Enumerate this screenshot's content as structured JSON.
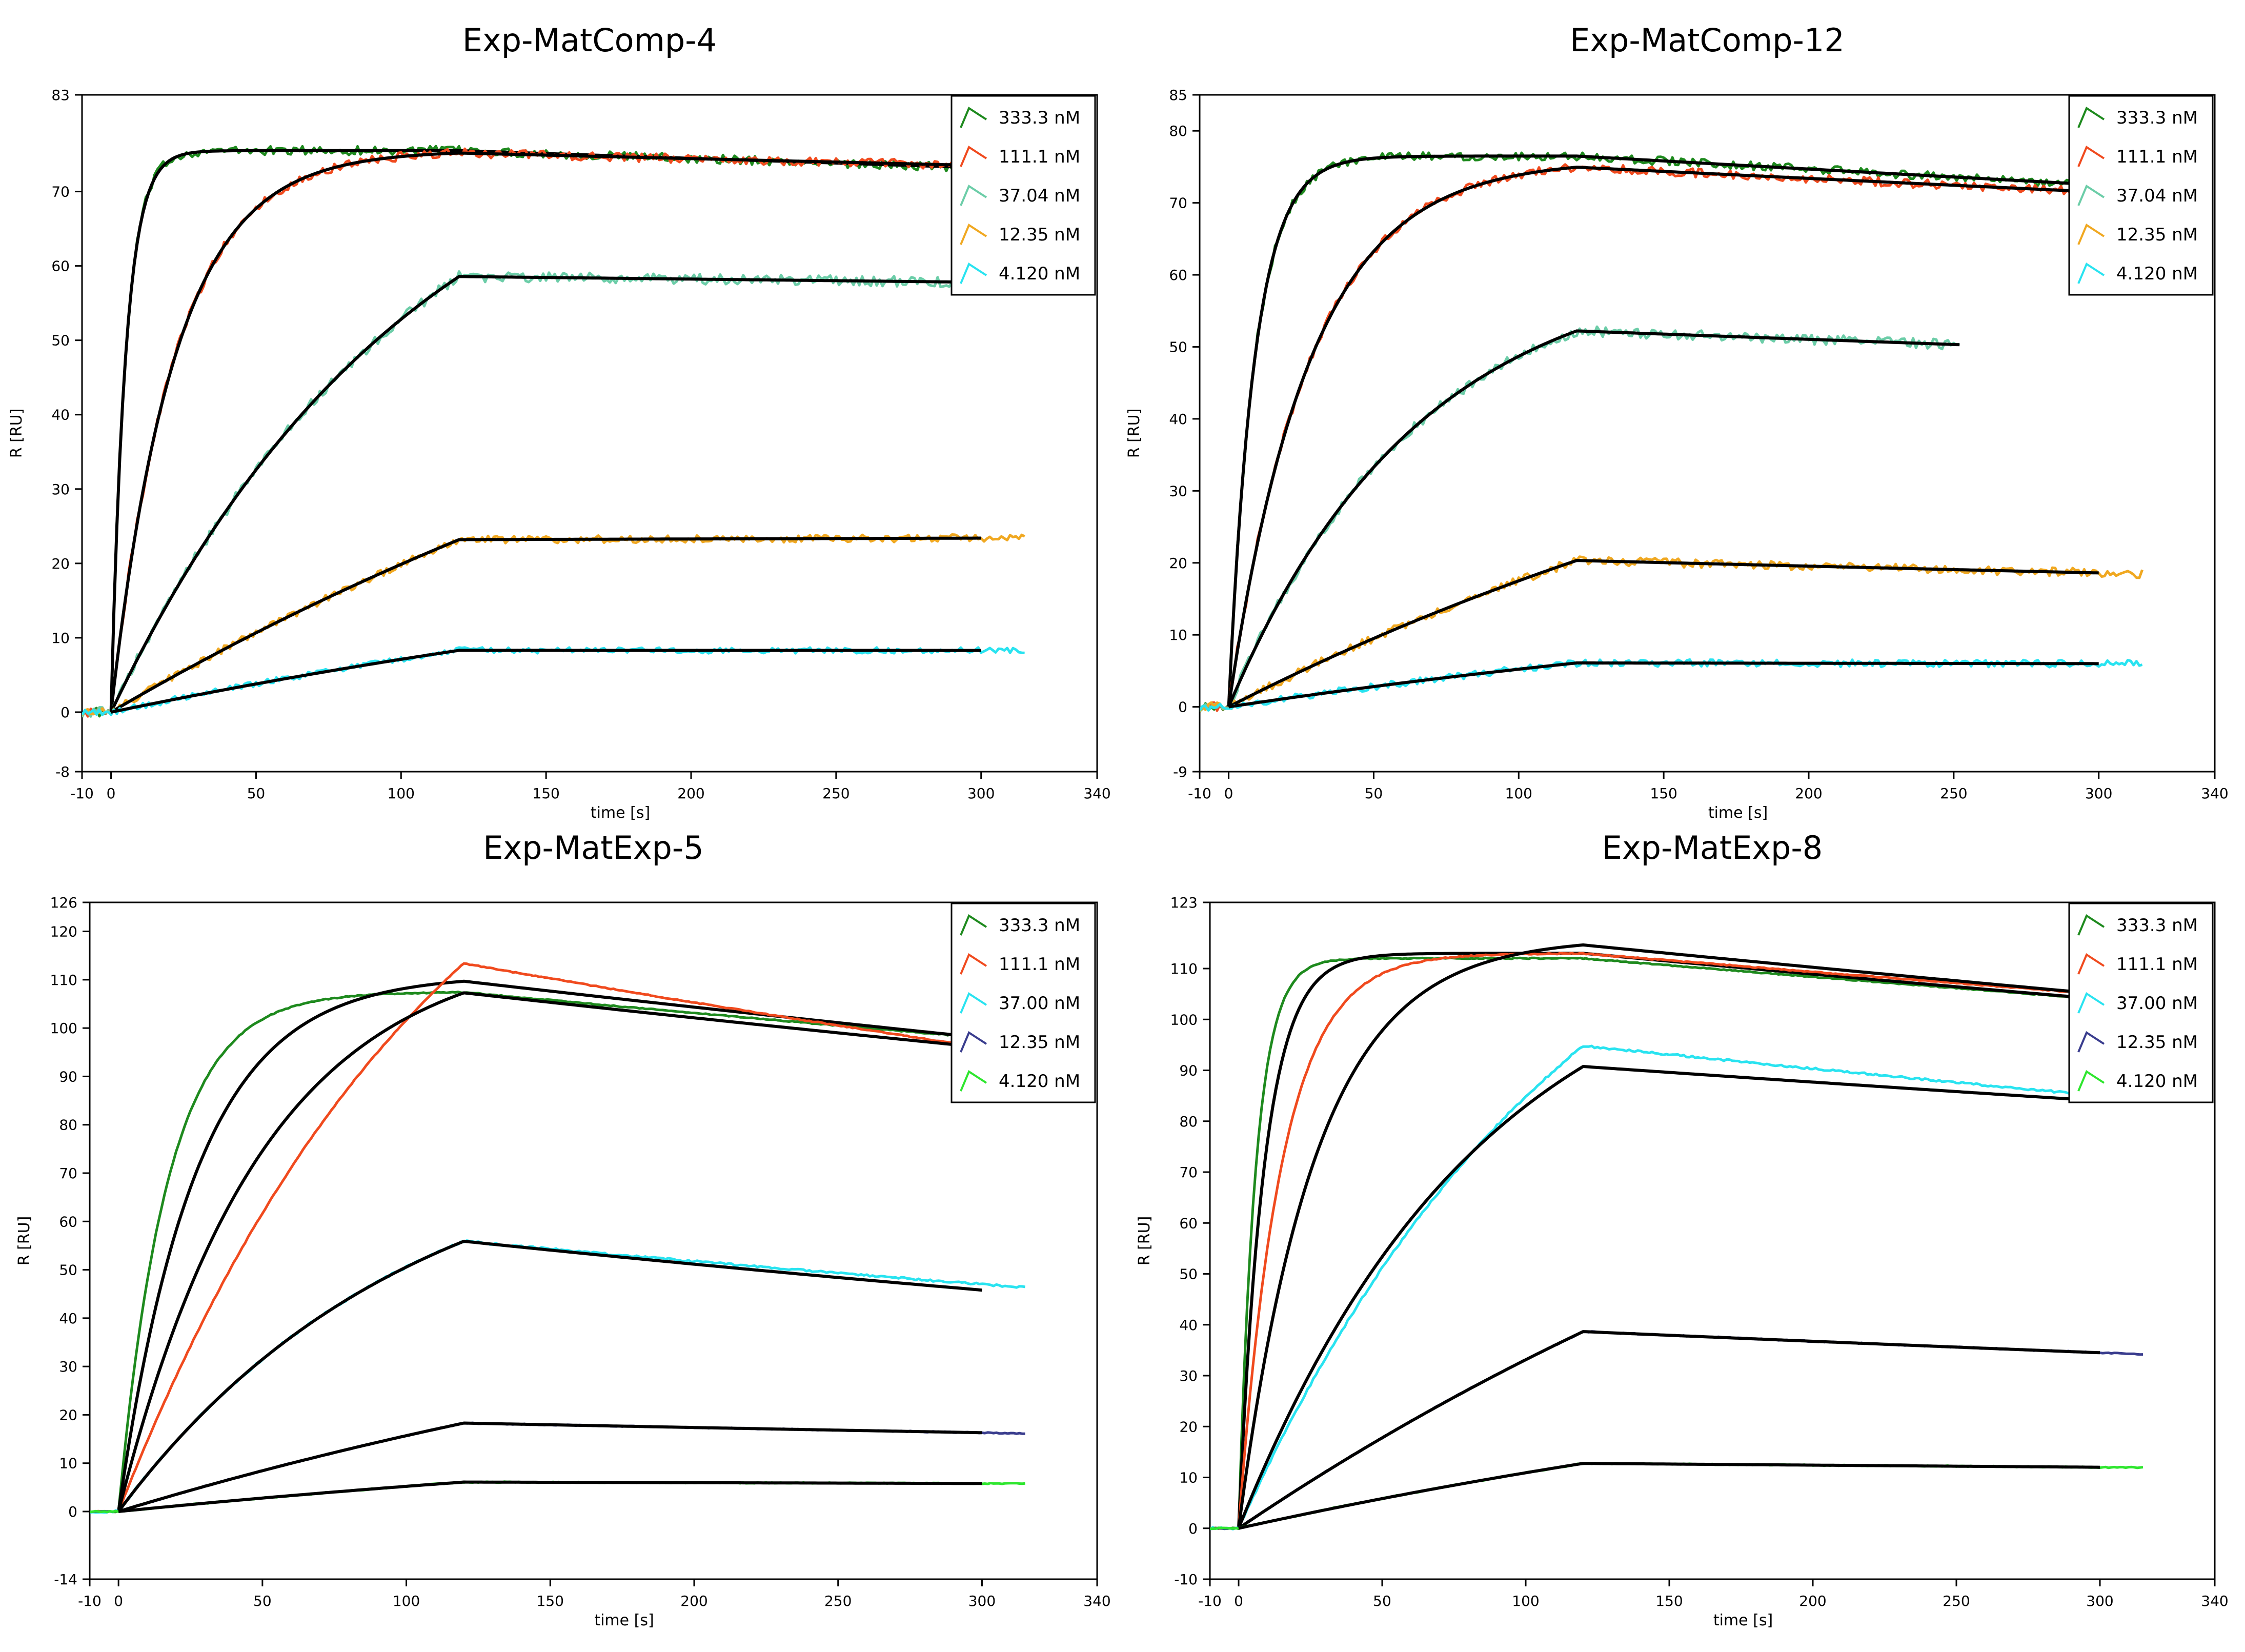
{
  "chart_data": [
    {
      "type": "line",
      "title": "Exp-MatComp-4",
      "xlabel": "time [s]",
      "ylabel": "R [RU]",
      "xlim": [
        -10,
        340
      ],
      "ylim": [
        -8,
        83
      ],
      "xticks": [
        -10,
        0,
        50,
        100,
        150,
        200,
        250,
        300,
        340
      ],
      "yticks": [
        -8,
        0,
        10,
        20,
        30,
        40,
        50,
        60,
        70,
        83
      ],
      "legend_position": "top-right",
      "series": [
        {
          "name": "333.3 nM",
          "color": "#1e8a1e",
          "fit_color": "#000000",
          "rmax": 75.5,
          "tau": 5.0,
          "t_end": 300,
          "fit_end": 300,
          "y_end": 73.2,
          "noise": 0.6
        },
        {
          "name": "111.1 nM",
          "color": "#f04a1e",
          "fit_color": "#000000",
          "rmax": 75.5,
          "tau": 22.0,
          "t_end": 300,
          "fit_end": 300,
          "y_end": 73.5,
          "noise": 0.6
        },
        {
          "name": "37.04 nM",
          "color": "#6ccda8",
          "fit_color": "#000000",
          "rmax": 86.0,
          "tau": 105.0,
          "t_end": 300,
          "fit_end": 300,
          "y_end": 57.8,
          "noise": 0.7
        },
        {
          "name": "12.35 nM",
          "color": "#f0a821",
          "fit_color": "#000000",
          "rmax": 78.0,
          "tau": 340.0,
          "t_end": 315,
          "fit_end": 300,
          "y_end": 23.4,
          "noise": 0.5
        },
        {
          "name": "4.120 nM",
          "color": "#29e3f0",
          "fit_color": "#000000",
          "rmax": 30.0,
          "tau": 370.0,
          "t_end": 315,
          "fit_end": 300,
          "y_end": 8.3,
          "noise": 0.4
        }
      ]
    },
    {
      "type": "line",
      "title": "Exp-MatComp-12",
      "xlabel": "time [s]",
      "ylabel": "R [RU]",
      "xlim": [
        -10,
        340
      ],
      "ylim": [
        -9,
        85
      ],
      "xticks": [
        -10,
        0,
        50,
        100,
        150,
        200,
        250,
        300,
        340
      ],
      "yticks": [
        -9,
        0,
        10,
        20,
        30,
        40,
        50,
        60,
        70,
        80,
        85
      ],
      "legend_position": "top-right",
      "series": [
        {
          "name": "333.3 nM",
          "color": "#1e8a1e",
          "fit_color": "#000000",
          "rmax": 76.5,
          "tau": 9.0,
          "t_end": 300,
          "fit_end": 300,
          "y_end": 72.5,
          "noise": 0.6
        },
        {
          "name": "111.1 nM",
          "color": "#f04a1e",
          "fit_color": "#000000",
          "rmax": 76.0,
          "tau": 28.0,
          "t_end": 300,
          "fit_end": 300,
          "y_end": 71.5,
          "noise": 0.6
        },
        {
          "name": "37.04 nM",
          "color": "#6ccda8",
          "fit_color": "#000000",
          "rmax": 62.0,
          "tau": 65.0,
          "t_end": 252,
          "fit_end": 252,
          "y_end": 50.3,
          "noise": 0.7
        },
        {
          "name": "12.35 nM",
          "color": "#f0a821",
          "fit_color": "#000000",
          "rmax": 60.0,
          "tau": 290.0,
          "t_end": 315,
          "fit_end": 300,
          "y_end": 18.6,
          "noise": 0.6
        },
        {
          "name": "4.120 nM",
          "color": "#29e3f0",
          "fit_color": "#000000",
          "rmax": 20.0,
          "tau": 330.0,
          "t_end": 315,
          "fit_end": 300,
          "y_end": 6.0,
          "noise": 0.5
        }
      ]
    },
    {
      "type": "line",
      "title": "Exp-MatExp-5",
      "xlabel": "time [s]",
      "ylabel": "R [RU]",
      "xlim": [
        -10,
        340
      ],
      "ylim": [
        -14,
        126
      ],
      "xticks": [
        -10,
        0,
        50,
        100,
        150,
        200,
        250,
        300,
        340
      ],
      "yticks": [
        -14,
        0,
        10,
        20,
        30,
        40,
        50,
        60,
        70,
        80,
        90,
        100,
        110,
        120,
        126
      ],
      "legend_position": "top-right",
      "series": [
        {
          "name": "333.3 nM",
          "color": "#1e8a1e",
          "fit_color": "#000000",
          "rmax": 107.5,
          "tau": 17.0,
          "fit_rmax": 111.0,
          "fit_tau": 27.0,
          "t_end": 300,
          "fit_end": 300,
          "y_end": 98.0,
          "noise": 0.1
        },
        {
          "name": "111.1 nM",
          "color": "#f04a1e",
          "fit_color": "#000000",
          "rmax": 175.0,
          "tau": 115.0,
          "fit_rmax": 118.0,
          "fit_tau": 50.0,
          "t_end": 300,
          "fit_end": 300,
          "y_end": 96.0,
          "noise": 0.1
        },
        {
          "name": "37.00 nM",
          "color": "#29e3f0",
          "fit_color": "#000000",
          "rmax": 80.0,
          "tau": 100.0,
          "t_end": 315,
          "fit_end": 300,
          "y_end": 47.0,
          "fit_y_end": 45.8,
          "noise": 0.2
        },
        {
          "name": "12.35 nM",
          "color": "#3a3d8e",
          "fit_color": "#000000",
          "rmax": 60.0,
          "tau": 330.0,
          "t_end": 315,
          "fit_end": 300,
          "y_end": 16.3,
          "noise": 0.1
        },
        {
          "name": "4.120 nM",
          "color": "#2ee62e",
          "fit_color": "#000000",
          "rmax": 22.0,
          "tau": 370.0,
          "t_end": 315,
          "fit_end": 300,
          "y_end": 5.8,
          "noise": 0.1
        }
      ]
    },
    {
      "type": "line",
      "title": "Exp-MatExp-8",
      "xlabel": "time [s]",
      "ylabel": "R [RU]",
      "xlim": [
        -10,
        340
      ],
      "ylim": [
        -10,
        123
      ],
      "xticks": [
        -10,
        0,
        50,
        100,
        150,
        200,
        250,
        300,
        340
      ],
      "yticks": [
        -10,
        0,
        10,
        20,
        30,
        40,
        50,
        60,
        70,
        80,
        90,
        100,
        110,
        123
      ],
      "legend_position": "top-right",
      "series": [
        {
          "name": "333.3 nM",
          "color": "#1e8a1e",
          "fit_color": "#000000",
          "rmax": 112.0,
          "tau": 6.0,
          "fit_rmax": 113.0,
          "fit_tau": 9.0,
          "t_end": 300,
          "fit_end": 300,
          "y_end": 104.0,
          "noise": 0.1
        },
        {
          "name": "111.1 nM",
          "color": "#f04a1e",
          "fit_color": "#000000",
          "rmax": 113.0,
          "tau": 15.0,
          "fit_rmax": 116.0,
          "fit_tau": 27.0,
          "t_end": 300,
          "fit_end": 300,
          "y_end": 105.0,
          "noise": 0.1
        },
        {
          "name": "37.00 nM",
          "color": "#29e3f0",
          "fit_color": "#000000",
          "rmax": 150.0,
          "tau": 120.0,
          "fit_rmax": 120.0,
          "fit_tau": 85.0,
          "t_end": 300,
          "fit_end": 300,
          "y_end": 85.0,
          "fit_y_end": 84.0,
          "noise": 0.2
        },
        {
          "name": "12.35 nM",
          "color": "#3a3d8e",
          "fit_color": "#000000",
          "rmax": 130.0,
          "tau": 340.0,
          "t_end": 315,
          "fit_end": 300,
          "y_end": 34.5,
          "noise": 0.1
        },
        {
          "name": "4.120 nM",
          "color": "#2ee62e",
          "fit_color": "#000000",
          "rmax": 45.0,
          "tau": 360.0,
          "t_end": 315,
          "fit_end": 300,
          "y_end": 12.0,
          "noise": 0.1
        }
      ]
    }
  ]
}
